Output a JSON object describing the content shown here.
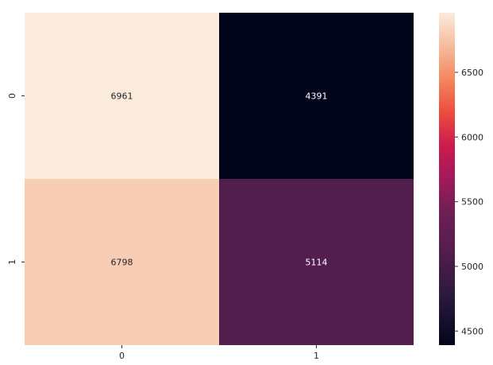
{
  "chart_data": {
    "type": "heatmap",
    "title": "",
    "xlabel": "",
    "ylabel": "",
    "x_categories": [
      "0",
      "1"
    ],
    "y_categories": [
      "0",
      "1"
    ],
    "matrix": [
      [
        6961,
        4391
      ],
      [
        6798,
        5114
      ]
    ],
    "annotations": [
      [
        "6961",
        "4391"
      ],
      [
        "6798",
        "5114"
      ]
    ],
    "colormap": "rocket",
    "colorbar": {
      "vmin": 4391,
      "vmax": 6961,
      "ticks": [
        4500,
        5000,
        5500,
        6000,
        6500
      ],
      "tick_labels": [
        "4500",
        "5000",
        "5500",
        "6000",
        "6500"
      ]
    },
    "colormap_stops": [
      {
        "t": 0.0,
        "color": "#03051a"
      },
      {
        "t": 0.15,
        "color": "#2b1a3f"
      },
      {
        "t": 0.3,
        "color": "#571e4f"
      },
      {
        "t": 0.4,
        "color": "#6f1f54"
      },
      {
        "t": 0.5,
        "color": "#a11a5b"
      },
      {
        "t": 0.6,
        "color": "#cb1b4f"
      },
      {
        "t": 0.7,
        "color": "#ec4c3e"
      },
      {
        "t": 0.8,
        "color": "#f4875e"
      },
      {
        "t": 0.9,
        "color": "#f6bc9d"
      },
      {
        "t": 1.0,
        "color": "#faebdd"
      }
    ]
  }
}
